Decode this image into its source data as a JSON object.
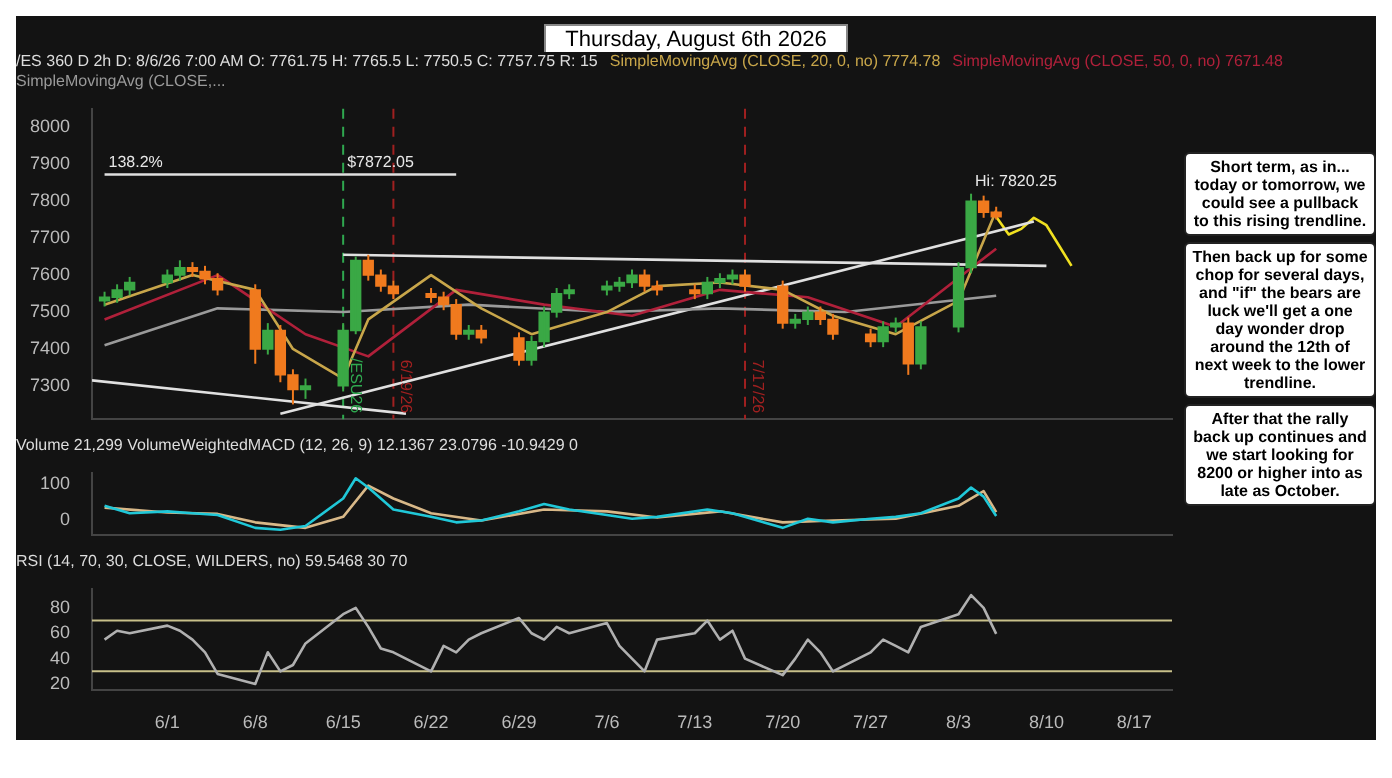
{
  "chart_data": [
    {
      "type": "candlestick",
      "title": "Thursday, August 6th 2026",
      "subtitle": "/ES 360 D 2h  D: 8/6/26 7:00 AM  O: 7761.75  H: 7765.5  L: 7750.5  C: 7757.75  R: 15",
      "x": [
        "2026-05-27",
        "2026-05-28",
        "2026-05-29",
        "2026-06-01",
        "2026-06-02",
        "2026-06-03",
        "2026-06-04",
        "2026-06-05",
        "2026-06-08",
        "2026-06-09",
        "2026-06-10",
        "2026-06-11",
        "2026-06-12",
        "2026-06-15",
        "2026-06-16",
        "2026-06-17",
        "2026-06-18",
        "2026-06-19",
        "2026-06-22",
        "2026-06-23",
        "2026-06-24",
        "2026-06-25",
        "2026-06-26",
        "2026-06-29",
        "2026-06-30",
        "2026-07-01",
        "2026-07-02",
        "2026-07-03",
        "2026-07-06",
        "2026-07-07",
        "2026-07-08",
        "2026-07-09",
        "2026-07-10",
        "2026-07-13",
        "2026-07-14",
        "2026-07-15",
        "2026-07-16",
        "2026-07-17",
        "2026-07-20",
        "2026-07-21",
        "2026-07-22",
        "2026-07-23",
        "2026-07-24",
        "2026-07-27",
        "2026-07-28",
        "2026-07-29",
        "2026-07-30",
        "2026-07-31",
        "2026-08-03",
        "2026-08-04",
        "2026-08-05",
        "2026-08-06"
      ],
      "ohlc": [
        [
          7530,
          7555,
          7515,
          7540
        ],
        [
          7540,
          7575,
          7525,
          7560
        ],
        [
          7560,
          7595,
          7545,
          7580
        ],
        [
          7580,
          7615,
          7565,
          7600
        ],
        [
          7600,
          7640,
          7585,
          7620
        ],
        [
          7620,
          7635,
          7595,
          7610
        ],
        [
          7610,
          7625,
          7575,
          7590
        ],
        [
          7590,
          7605,
          7545,
          7560
        ],
        [
          7560,
          7575,
          7360,
          7400
        ],
        [
          7400,
          7470,
          7385,
          7450
        ],
        [
          7450,
          7465,
          7310,
          7330
        ],
        [
          7330,
          7345,
          7250,
          7290
        ],
        [
          7290,
          7320,
          7265,
          7300
        ],
        [
          7300,
          7470,
          7285,
          7450
        ],
        [
          7450,
          7650,
          7440,
          7640
        ],
        [
          7640,
          7655,
          7585,
          7600
        ],
        [
          7600,
          7615,
          7555,
          7570
        ],
        [
          7570,
          7585,
          7535,
          7550
        ],
        [
          7550,
          7565,
          7525,
          7540
        ],
        [
          7540,
          7555,
          7505,
          7520
        ],
        [
          7520,
          7535,
          7425,
          7440
        ],
        [
          7440,
          7465,
          7425,
          7450
        ],
        [
          7450,
          7465,
          7415,
          7430
        ],
        [
          7430,
          7445,
          7355,
          7370
        ],
        [
          7370,
          7435,
          7355,
          7420
        ],
        [
          7420,
          7515,
          7405,
          7500
        ],
        [
          7500,
          7565,
          7485,
          7550
        ],
        [
          7550,
          7575,
          7535,
          7560
        ],
        [
          7560,
          7585,
          7545,
          7570
        ],
        [
          7570,
          7595,
          7555,
          7580
        ],
        [
          7580,
          7615,
          7565,
          7600
        ],
        [
          7600,
          7615,
          7555,
          7570
        ],
        [
          7570,
          7585,
          7545,
          7560
        ],
        [
          7560,
          7575,
          7535,
          7550
        ],
        [
          7550,
          7595,
          7535,
          7580
        ],
        [
          7580,
          7605,
          7565,
          7590
        ],
        [
          7590,
          7615,
          7575,
          7600
        ],
        [
          7600,
          7615,
          7555,
          7570
        ],
        [
          7570,
          7585,
          7455,
          7470
        ],
        [
          7470,
          7495,
          7455,
          7480
        ],
        [
          7480,
          7515,
          7465,
          7500
        ],
        [
          7500,
          7515,
          7465,
          7480
        ],
        [
          7480,
          7495,
          7425,
          7440
        ],
        [
          7440,
          7455,
          7405,
          7420
        ],
        [
          7420,
          7475,
          7405,
          7460
        ],
        [
          7460,
          7485,
          7445,
          7470
        ],
        [
          7470,
          7485,
          7330,
          7360
        ],
        [
          7360,
          7475,
          7345,
          7460
        ],
        [
          7460,
          7635,
          7445,
          7620
        ],
        [
          7620,
          7820.25,
          7605,
          7800
        ],
        [
          7800,
          7815,
          7755,
          7770
        ],
        [
          7770,
          7785,
          7750.5,
          7757.75
        ]
      ],
      "series": [
        {
          "type": "line",
          "name": "SimpleMovingAvg (CLOSE, 20, 0, no) 7774.78",
          "color": "#c8a64a",
          "x": [
            "2026-05-27",
            "2026-06-03",
            "2026-06-08",
            "2026-06-11",
            "2026-06-15",
            "2026-06-17",
            "2026-06-22",
            "2026-06-26",
            "2026-06-30",
            "2026-07-06",
            "2026-07-10",
            "2026-07-15",
            "2026-07-20",
            "2026-07-24",
            "2026-07-29",
            "2026-08-03",
            "2026-08-06"
          ],
          "values": [
            7520,
            7600,
            7560,
            7400,
            7320,
            7480,
            7600,
            7510,
            7440,
            7500,
            7570,
            7580,
            7560,
            7490,
            7440,
            7530,
            7774.78
          ]
        },
        {
          "type": "line",
          "name": "SimpleMovingAvg (CLOSE, 50, 0, no) 7671.48",
          "color": "#b0203a",
          "x": [
            "2026-05-27",
            "2026-06-05",
            "2026-06-12",
            "2026-06-17",
            "2026-06-24",
            "2026-07-01",
            "2026-07-08",
            "2026-07-15",
            "2026-07-22",
            "2026-07-29",
            "2026-08-06"
          ],
          "values": [
            7480,
            7600,
            7440,
            7380,
            7560,
            7520,
            7490,
            7560,
            7540,
            7460,
            7671.48
          ]
        },
        {
          "type": "line",
          "name": "SimpleMovingAvg (CLOSE,...",
          "color": "#9a9a9a",
          "x": [
            "2026-05-27",
            "2026-06-05",
            "2026-06-15",
            "2026-06-25",
            "2026-07-06",
            "2026-07-15",
            "2026-07-25",
            "2026-08-06"
          ],
          "values": [
            7410,
            7510,
            7500,
            7520,
            7500,
            7510,
            7500,
            7543.99
          ]
        },
        {
          "type": "line",
          "color": "#e0e0e0",
          "x": [
            "2026-05-27",
            "2026-06-24"
          ],
          "values": [
            7872.05,
            7872.05
          ]
        },
        {
          "type": "line",
          "color": "#e0e0e0",
          "x": [
            "2026-05-26",
            "2026-06-20"
          ],
          "values": [
            7315,
            7225
          ]
        },
        {
          "type": "line",
          "color": "#e0e0e0",
          "x": [
            "2026-06-10",
            "2026-08-09"
          ],
          "values": [
            7225,
            7745
          ]
        },
        {
          "type": "line",
          "color": "#e0e0e0",
          "x": [
            "2026-06-15",
            "2026-08-10"
          ],
          "values": [
            7655,
            7625
          ]
        },
        {
          "type": "line",
          "color": "#f0e020",
          "x": [
            "2026-08-06",
            "2026-08-07",
            "2026-08-08",
            "2026-08-09",
            "2026-08-10",
            "2026-08-11",
            "2026-08-12"
          ],
          "values": [
            7757.75,
            7710,
            7725,
            7755,
            7735,
            7680,
            7625
          ]
        }
      ],
      "ref_lines": [
        {
          "axis": "x",
          "value": "2026-06-15",
          "label": "/ESU26",
          "color": "#2fa84f",
          "line_style": "dashed"
        },
        {
          "axis": "x",
          "value": "2026-06-19",
          "label": "6/19/26",
          "color": "#a02020",
          "line_style": "dashed"
        },
        {
          "axis": "x",
          "value": "2026-07-17",
          "label": "7/17/26",
          "color": "#a02020",
          "line_style": "dashed"
        }
      ],
      "annotations": [
        {
          "text": "138.2%",
          "x": "2026-05-27",
          "y": 7872.05
        },
        {
          "text": "$7872.05",
          "x": "2026-06-15",
          "y": 7872.05
        },
        {
          "text": "Hi: 7820.25",
          "x": "2026-08-04",
          "y": 7820.25
        },
        "Short term, as in... today or tomorrow, we could see a pullback to this rising trendline.",
        "Then back up for some chop for several days, and \"if\" the bears are luck we'll get a one day wonder drop around the 12th of next week to the lower trendline.",
        "After that the rally back up continues and we start looking for 8200 or higher into as late as October."
      ],
      "tick_labels": "y",
      "xlim": [
        "2026-05-26",
        "2026-08-20"
      ],
      "ylim": [
        7210,
        8050
      ],
      "yticks": [
        7300,
        7400,
        7500,
        7600,
        7700,
        7800,
        7900,
        8000
      ]
    },
    {
      "type": "line",
      "title": "Volume 21,299  VolumeWeightedMACD (12, 26, 9)  12.1367  23.0796  -10.9429  0",
      "series": [
        {
          "color": "#20c8d8",
          "x": [
            "2026-05-27",
            "2026-05-29",
            "2026-06-01",
            "2026-06-03",
            "2026-06-05",
            "2026-06-08",
            "2026-06-10",
            "2026-06-12",
            "2026-06-15",
            "2026-06-16",
            "2026-06-17",
            "2026-06-19",
            "2026-06-22",
            "2026-06-24",
            "2026-06-26",
            "2026-06-29",
            "2026-07-01",
            "2026-07-03",
            "2026-07-06",
            "2026-07-08",
            "2026-07-10",
            "2026-07-14",
            "2026-07-16",
            "2026-07-20",
            "2026-07-22",
            "2026-07-24",
            "2026-07-27",
            "2026-07-29",
            "2026-07-31",
            "2026-08-03",
            "2026-08-04",
            "2026-08-05",
            "2026-08-06"
          ],
          "values": [
            40,
            20,
            25,
            20,
            15,
            -20,
            -25,
            -15,
            60,
            115,
            90,
            30,
            10,
            -5,
            0,
            25,
            45,
            30,
            15,
            5,
            10,
            30,
            20,
            -20,
            5,
            -5,
            5,
            10,
            20,
            60,
            90,
            65,
            12.1367
          ]
        },
        {
          "color": "#d8b888",
          "x": [
            "2026-05-27",
            "2026-06-01",
            "2026-06-05",
            "2026-06-08",
            "2026-06-12",
            "2026-06-15",
            "2026-06-17",
            "2026-06-19",
            "2026-06-22",
            "2026-06-26",
            "2026-07-01",
            "2026-07-06",
            "2026-07-10",
            "2026-07-15",
            "2026-07-20",
            "2026-07-24",
            "2026-07-29",
            "2026-08-03",
            "2026-08-05",
            "2026-08-06"
          ],
          "values": [
            35,
            22,
            18,
            -5,
            -20,
            10,
            95,
            60,
            20,
            0,
            30,
            25,
            8,
            25,
            -5,
            0,
            5,
            40,
            80,
            23.0796
          ]
        }
      ],
      "tick_labels": "y",
      "xlim": [
        "2026-05-26",
        "2026-08-20"
      ],
      "ylim": [
        -40,
        130
      ],
      "yticks": [
        0,
        100
      ]
    },
    {
      "type": "line",
      "title": "RSI (14, 70, 30, CLOSE, WILDERS, no)  59.5468  30  70",
      "series": [
        {
          "color": "#b0b0b0",
          "x": [
            "2026-05-27",
            "2026-05-28",
            "2026-05-29",
            "2026-06-01",
            "2026-06-02",
            "2026-06-03",
            "2026-06-04",
            "2026-06-05",
            "2026-06-08",
            "2026-06-09",
            "2026-06-10",
            "2026-06-11",
            "2026-06-12",
            "2026-06-15",
            "2026-06-16",
            "2026-06-17",
            "2026-06-18",
            "2026-06-19",
            "2026-06-22",
            "2026-06-23",
            "2026-06-24",
            "2026-06-25",
            "2026-06-26",
            "2026-06-29",
            "2026-06-30",
            "2026-07-01",
            "2026-07-02",
            "2026-07-03",
            "2026-07-06",
            "2026-07-07",
            "2026-07-08",
            "2026-07-09",
            "2026-07-10",
            "2026-07-13",
            "2026-07-14",
            "2026-07-15",
            "2026-07-16",
            "2026-07-17",
            "2026-07-20",
            "2026-07-21",
            "2026-07-22",
            "2026-07-23",
            "2026-07-24",
            "2026-07-27",
            "2026-07-28",
            "2026-07-29",
            "2026-07-30",
            "2026-07-31",
            "2026-08-03",
            "2026-08-04",
            "2026-08-05",
            "2026-08-06"
          ],
          "values": [
            55,
            62,
            60,
            66,
            62,
            55,
            45,
            28,
            20,
            45,
            30,
            35,
            52,
            75,
            80,
            65,
            48,
            45,
            30,
            50,
            45,
            55,
            60,
            72,
            60,
            55,
            65,
            60,
            68,
            50,
            40,
            30,
            55,
            60,
            70,
            55,
            62,
            40,
            27,
            40,
            55,
            45,
            30,
            45,
            55,
            50,
            45,
            65,
            75,
            90,
            80,
            59.5468
          ]
        }
      ],
      "ref_lines": [
        {
          "axis": "y",
          "value": 30,
          "color": "#c8c08a"
        },
        {
          "axis": "y",
          "value": 70,
          "color": "#c8c08a"
        }
      ],
      "xlim": [
        "2026-05-26",
        "2026-08-20"
      ],
      "xticks": [
        {
          "value": "2026-06-01",
          "label": "6/1"
        },
        {
          "value": "2026-06-08",
          "label": "6/8"
        },
        {
          "value": "2026-06-15",
          "label": "6/15"
        },
        {
          "value": "2026-06-22",
          "label": "6/22"
        },
        {
          "value": "2026-06-29",
          "label": "6/29"
        },
        {
          "value": "2026-07-06",
          "label": "7/6"
        },
        {
          "value": "2026-07-13",
          "label": "7/13"
        },
        {
          "value": "2026-07-20",
          "label": "7/20"
        },
        {
          "value": "2026-07-27",
          "label": "7/27"
        },
        {
          "value": "2026-08-03",
          "label": "8/3"
        },
        {
          "value": "2026-08-10",
          "label": "8/10"
        },
        {
          "value": "2026-08-17",
          "label": "8/17"
        }
      ],
      "ylim": [
        15,
        95
      ],
      "yticks": [
        20,
        40,
        60,
        80
      ]
    }
  ]
}
